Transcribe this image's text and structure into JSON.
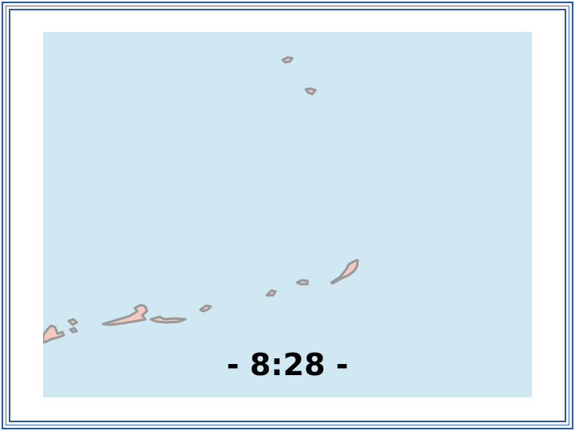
{
  "map": {
    "water_color": "#d0e8f2",
    "land_color": "#f3c9c0",
    "outline_color": "#999999",
    "frame_color": "#2b5aa8"
  },
  "timer": {
    "label": "- 8:28 -"
  }
}
